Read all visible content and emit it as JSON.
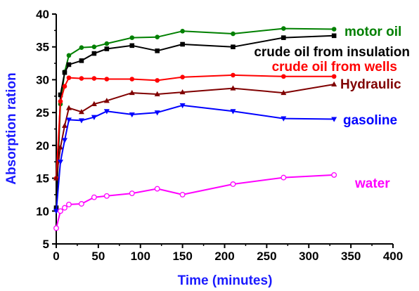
{
  "chart_data": {
    "type": "line",
    "title": "",
    "xlabel": "Time (minutes)",
    "ylabel": "Absorption ration",
    "xlim": [
      0,
      400
    ],
    "ylim": [
      5,
      40
    ],
    "x_ticks": [
      0,
      50,
      100,
      150,
      200,
      250,
      300,
      350,
      400
    ],
    "y_ticks": [
      5,
      10,
      15,
      20,
      25,
      30,
      35,
      40
    ],
    "grid": false,
    "legend": "inline labels at right end of each series",
    "series": [
      {
        "name": "motor oil",
        "color": "#008000",
        "marker": "circle",
        "x": [
          0,
          5,
          10,
          15,
          30,
          45,
          60,
          90,
          120,
          150,
          210,
          270,
          330
        ],
        "y": [
          10.5,
          26.3,
          31.2,
          33.7,
          34.9,
          35.0,
          35.5,
          36.4,
          36.5,
          37.4,
          37.0,
          37.8,
          37.7
        ]
      },
      {
        "name": "crude oil from insulation",
        "color": "#000000",
        "marker": "square",
        "x": [
          0,
          5,
          10,
          15,
          30,
          45,
          60,
          90,
          120,
          150,
          210,
          270,
          330
        ],
        "y": [
          10.5,
          27.7,
          31.1,
          32.3,
          32.9,
          34.0,
          34.7,
          35.2,
          34.4,
          35.4,
          35.0,
          36.4,
          36.7
        ]
      },
      {
        "name": "crude oil from wells",
        "color": "#ff0000",
        "marker": "circle",
        "x": [
          0,
          5,
          10,
          15,
          30,
          45,
          60,
          90,
          120,
          150,
          210,
          270,
          330
        ],
        "y": [
          15.0,
          26.7,
          29.0,
          30.3,
          30.2,
          30.2,
          30.1,
          30.1,
          29.9,
          30.4,
          30.7,
          30.5,
          30.5
        ]
      },
      {
        "name": "Hydraulic",
        "color": "#800000",
        "marker": "triangle-up",
        "x": [
          0,
          5,
          10,
          15,
          30,
          45,
          60,
          90,
          120,
          150,
          210,
          270,
          330
        ],
        "y": [
          15.0,
          19.7,
          23.0,
          25.7,
          25.1,
          26.3,
          26.8,
          28.0,
          27.8,
          28.1,
          28.7,
          28.0,
          29.3
        ]
      },
      {
        "name": "gasoline",
        "color": "#0000ff",
        "marker": "triangle-down",
        "x": [
          0,
          5,
          10,
          15,
          30,
          45,
          60,
          90,
          120,
          150,
          210,
          270,
          330
        ],
        "y": [
          10.0,
          17.5,
          20.8,
          23.9,
          23.8,
          24.3,
          25.2,
          24.7,
          25.0,
          26.1,
          25.2,
          24.1,
          24.0
        ]
      },
      {
        "name": "water",
        "color": "#ff00ff",
        "marker": "open-circle",
        "x": [
          0,
          5,
          10,
          15,
          30,
          45,
          60,
          90,
          120,
          150,
          210,
          270,
          330
        ],
        "y": [
          7.4,
          10.0,
          10.5,
          11.0,
          11.1,
          12.1,
          12.3,
          12.7,
          13.4,
          12.5,
          14.1,
          15.1,
          15.5
        ]
      }
    ]
  }
}
